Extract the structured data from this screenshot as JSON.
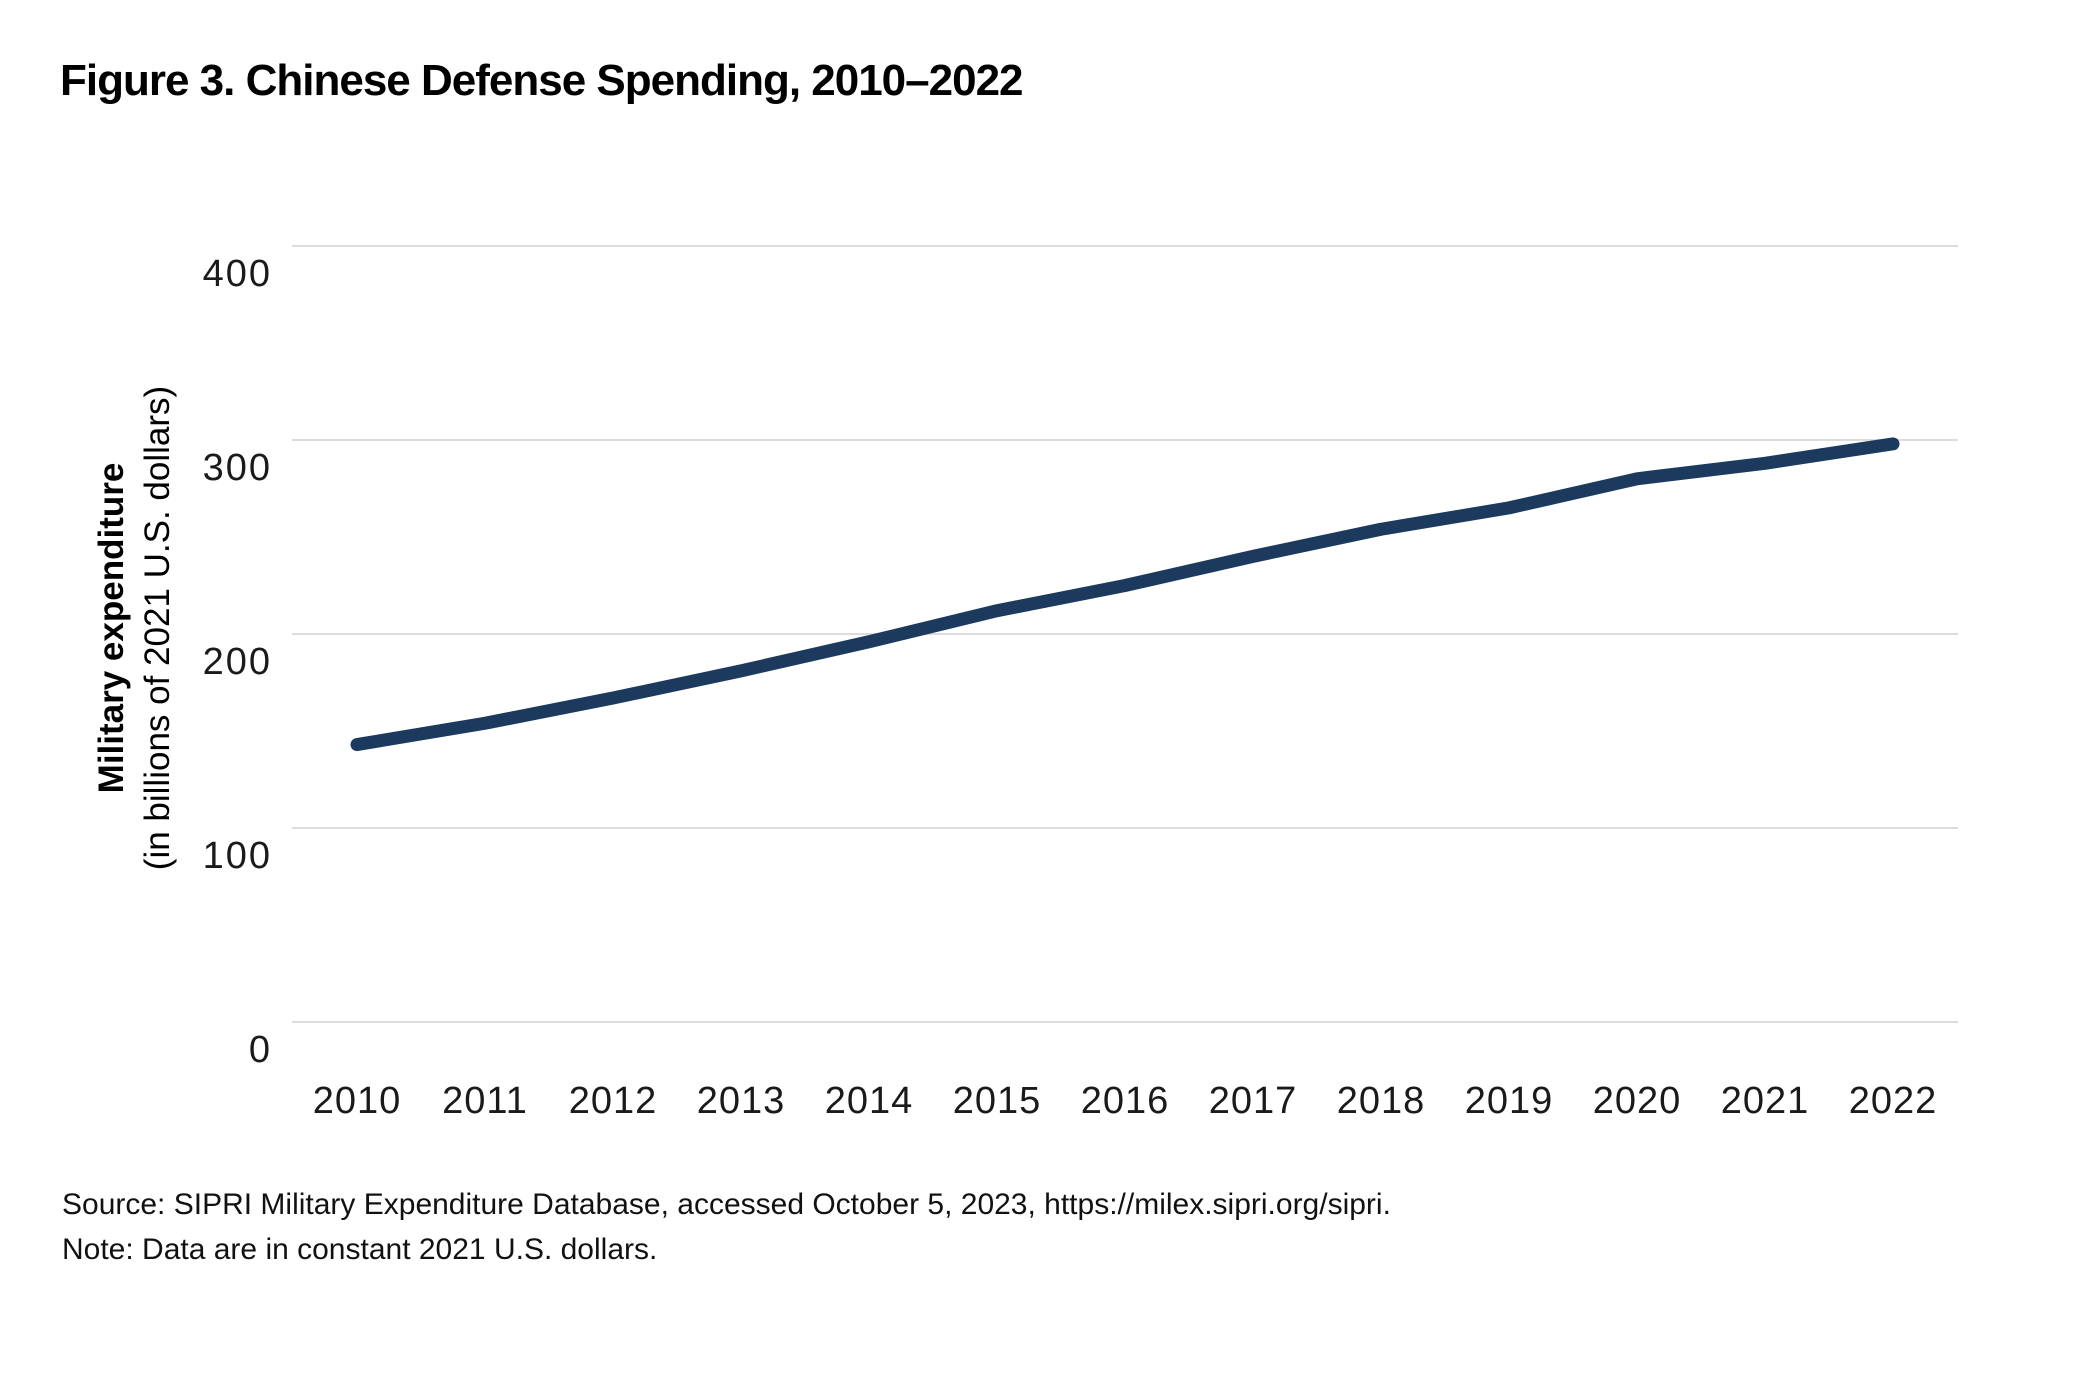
{
  "figure": {
    "title": "Figure 3. Chinese Defense Spending, 2010–2022",
    "source": "Source: SIPRI Military Expenditure Database, accessed October 5, 2023, https://milex.sipri.org/sipri.",
    "note": "Note: Data are in constant 2021 U.S. dollars."
  },
  "chart_data": {
    "type": "line",
    "title": "Figure 3. Chinese Defense Spending, 2010–2022",
    "categories": [
      "2010",
      "2011",
      "2012",
      "2013",
      "2014",
      "2015",
      "2016",
      "2017",
      "2018",
      "2019",
      "2020",
      "2021",
      "2022"
    ],
    "series": [
      {
        "name": "Chinese military expenditure",
        "values": [
          143,
          154,
          167,
          181,
          196,
          212,
          225,
          240,
          254,
          265,
          280,
          288,
          298
        ]
      }
    ],
    "xlabel": "",
    "ylabel_bold": "Military expenditure",
    "ylabel_sub": "(in billions of 2021 U.S. dollars)",
    "yticks": [
      0,
      100,
      200,
      300,
      400
    ],
    "ylim": [
      0,
      400
    ],
    "grid": "horizontal-only",
    "legend": "none",
    "line_color": "#1b3a5e",
    "grid_color": "#dcdcdc"
  }
}
